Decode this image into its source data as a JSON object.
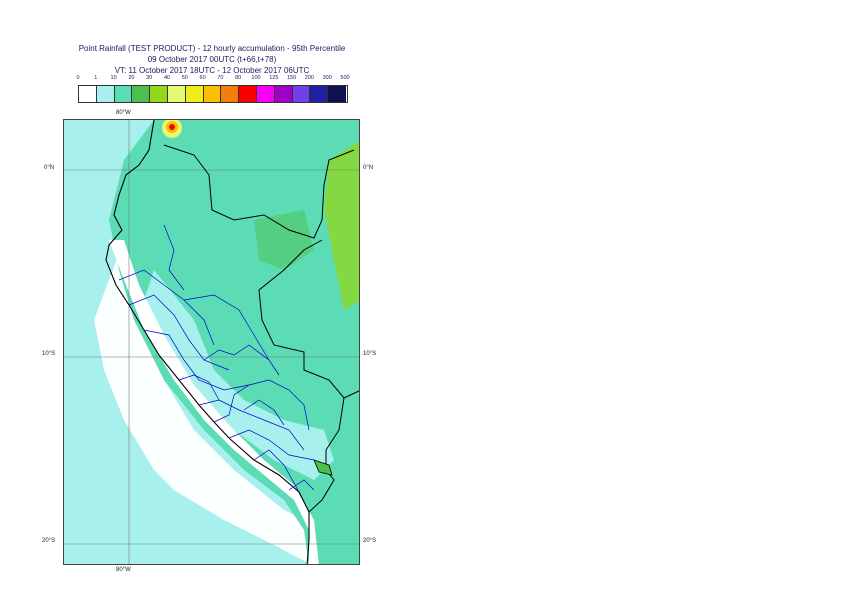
{
  "title": {
    "line1": "Point Rainfall (TEST PRODUCT) - 12 hourly accumulation - 95th Percentile",
    "line2": "09 October 2017 00UTC (t+66,t+78)",
    "line3": "VT: 11 October 2017 18UTC - 12 October 2017 06UTC"
  },
  "legend": {
    "ticks": [
      "0",
      "1",
      "10",
      "20",
      "30",
      "40",
      "50",
      "60",
      "70",
      "80",
      "100",
      "125",
      "150",
      "200",
      "300",
      "500"
    ],
    "colors": [
      "#ffffff",
      "#a8f0ee",
      "#5cdcb4",
      "#4cc04c",
      "#92d81c",
      "#e8f872",
      "#f0ec18",
      "#f8c000",
      "#f87c08",
      "#f80000",
      "#f800f8",
      "#a000c8",
      "#7040ec",
      "#2020a0",
      "#101050"
    ]
  },
  "axes": {
    "lon_top": "80°W",
    "lon_bottom": "80°W",
    "lat_0_left": "0°N",
    "lat_0_right": "0°N",
    "lat_10_left": "10°S",
    "lat_10_right": "10°S",
    "lat_20_left": "20°S",
    "lat_20_right": "20°S"
  },
  "map": {
    "ocean_color": "#a8f0ee",
    "land_low_color": "#ffffff",
    "green_color": "#5cdcb4",
    "strong_color": "#92d81c"
  }
}
